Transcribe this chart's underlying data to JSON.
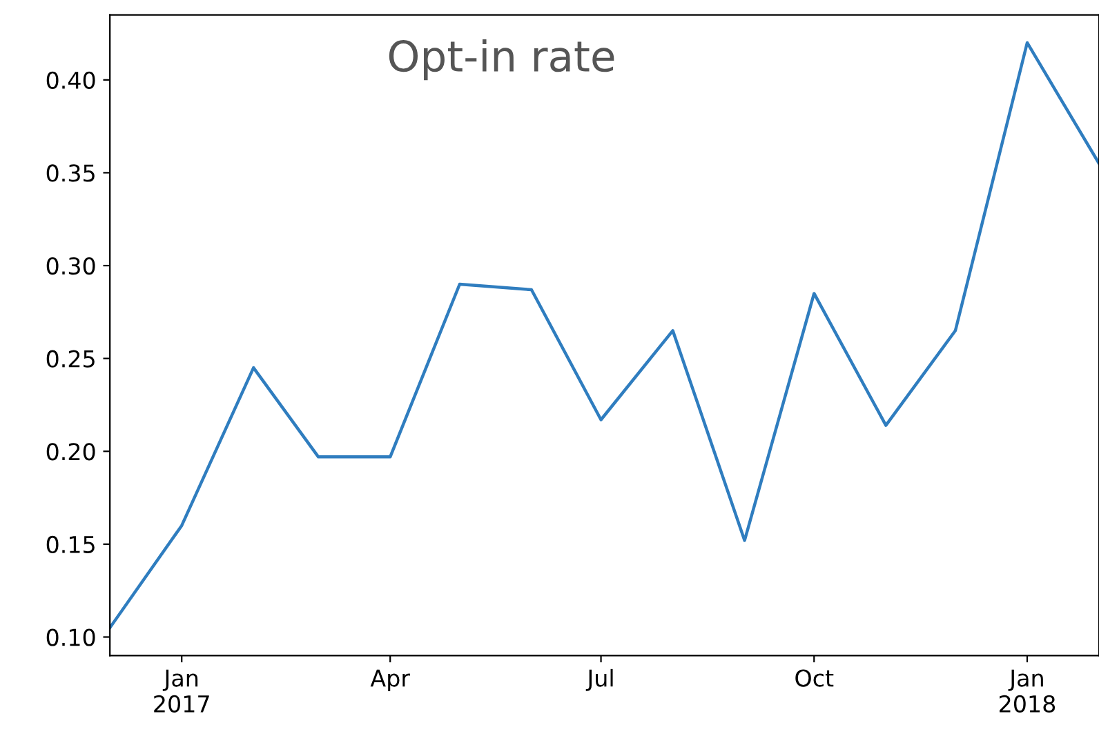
{
  "chart_data": {
    "type": "line",
    "title": "Opt-in rate",
    "x": [
      "2016-12",
      "2017-01",
      "2017-02",
      "2017-03",
      "2017-04",
      "2017-05",
      "2017-06",
      "2017-07",
      "2017-08",
      "2017-09",
      "2017-10",
      "2017-11",
      "2017-12",
      "2018-01",
      "2018-02"
    ],
    "series": [
      {
        "color": "#2f7dbf",
        "values": [
          0.105,
          0.16,
          0.245,
          0.197,
          0.197,
          0.29,
          0.287,
          0.217,
          0.265,
          0.152,
          0.285,
          0.214,
          0.265,
          0.42,
          0.355
        ]
      }
    ],
    "xlim": [
      "2016-12",
      "2018-02"
    ],
    "xticks": [
      {
        "value": "2017-01",
        "label": "Jan\n2017"
      },
      {
        "value": "2017-04",
        "label": "Apr"
      },
      {
        "value": "2017-07",
        "label": "Jul"
      },
      {
        "value": "2017-10",
        "label": "Oct"
      },
      {
        "value": "2018-01",
        "label": "Jan\n2018"
      }
    ],
    "ylim": [
      0.09,
      0.435
    ],
    "yticks": [
      {
        "value": 0.1,
        "label": "0.10"
      },
      {
        "value": 0.15,
        "label": "0.15"
      },
      {
        "value": 0.2,
        "label": "0.20"
      },
      {
        "value": 0.25,
        "label": "0.25"
      },
      {
        "value": 0.3,
        "label": "0.30"
      },
      {
        "value": 0.35,
        "label": "0.35"
      },
      {
        "value": 0.4,
        "label": "0.40"
      }
    ],
    "grid": false,
    "marker": "none",
    "line_style": "solid"
  }
}
